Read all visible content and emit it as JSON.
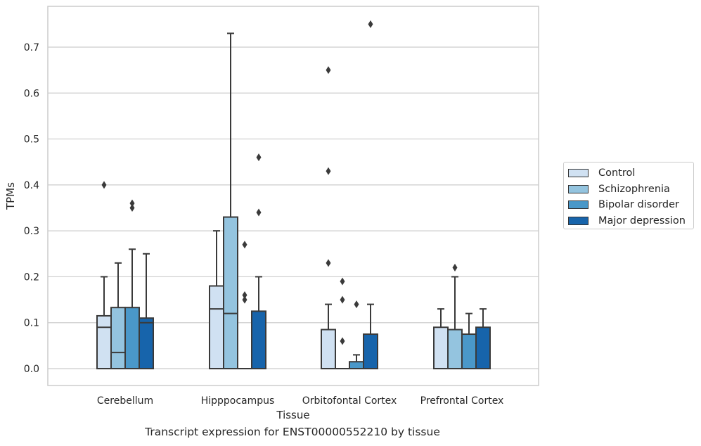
{
  "caption": "Transcript expression for ENST00000552210 by tissue",
  "chart_data": {
    "type": "box",
    "xlabel": "Tissue",
    "ylabel": "TPMs",
    "ylim": [
      -0.037,
      0.79
    ],
    "yticks": [
      "0.0",
      "0.1",
      "0.2",
      "0.3",
      "0.4",
      "0.5",
      "0.6",
      "0.7"
    ],
    "categories": [
      "Cerebellum",
      "Hipppocampus",
      "Orbitofontal Cortex",
      "Prefrontal Cortex"
    ],
    "grid": "horizontal",
    "legend_position": "right",
    "series": [
      {
        "name": "Control",
        "color": "#d0e1f2",
        "boxes": [
          {
            "min": 0,
            "q1": 0,
            "median": 0.09,
            "q3": 0.115,
            "max": 0.2,
            "outliers": [
              0.4
            ]
          },
          {
            "min": 0,
            "q1": 0,
            "median": 0.13,
            "q3": 0.18,
            "max": 0.3,
            "outliers": []
          },
          {
            "min": 0,
            "q1": 0,
            "median": 0,
            "q3": 0.085,
            "max": 0.14,
            "outliers": [
              0.23,
              0.43,
              0.65
            ]
          },
          {
            "min": 0,
            "q1": 0,
            "median": 0,
            "q3": 0.09,
            "max": 0.13,
            "outliers": []
          }
        ]
      },
      {
        "name": "Schizophrenia",
        "color": "#94c4df",
        "boxes": [
          {
            "min": 0,
            "q1": 0,
            "median": 0.035,
            "q3": 0.133,
            "max": 0.23,
            "outliers": []
          },
          {
            "min": 0,
            "q1": 0,
            "median": 0.12,
            "q3": 0.33,
            "max": 0.73,
            "outliers": []
          },
          {
            "min": 0,
            "q1": 0,
            "median": 0,
            "q3": 0,
            "max": 0,
            "outliers": [
              0.06,
              0.15,
              0.19
            ]
          },
          {
            "min": 0,
            "q1": 0,
            "median": 0,
            "q3": 0.085,
            "max": 0.2,
            "outliers": [
              0.22
            ]
          }
        ]
      },
      {
        "name": "Bipolar disorder",
        "color": "#4a98c9",
        "boxes": [
          {
            "min": 0,
            "q1": 0,
            "median": 0,
            "q3": 0.133,
            "max": 0.26,
            "outliers": [
              0.35,
              0.36
            ]
          },
          {
            "min": 0,
            "q1": 0,
            "median": 0,
            "q3": 0,
            "max": 0,
            "outliers": [
              0.15,
              0.16,
              0.27
            ]
          },
          {
            "min": 0,
            "q1": 0,
            "median": 0,
            "q3": 0.015,
            "max": 0.03,
            "outliers": [
              0.14
            ]
          },
          {
            "min": 0,
            "q1": 0,
            "median": 0,
            "q3": 0.075,
            "max": 0.12,
            "outliers": []
          }
        ]
      },
      {
        "name": "Major depression",
        "color": "#1764ab",
        "boxes": [
          {
            "min": 0,
            "q1": 0,
            "median": 0.1,
            "q3": 0.11,
            "max": 0.25,
            "outliers": []
          },
          {
            "min": 0,
            "q1": 0,
            "median": 0,
            "q3": 0.125,
            "max": 0.2,
            "outliers": [
              0.34,
              0.46
            ]
          },
          {
            "min": 0,
            "q1": 0,
            "median": 0,
            "q3": 0.075,
            "max": 0.14,
            "outliers": [
              0.75
            ]
          },
          {
            "min": 0,
            "q1": 0,
            "median": 0,
            "q3": 0.09,
            "max": 0.13,
            "outliers": []
          }
        ]
      }
    ]
  }
}
